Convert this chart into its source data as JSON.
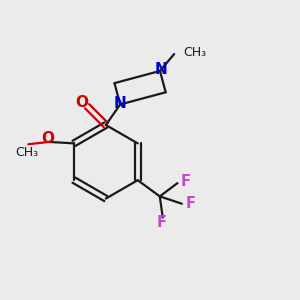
{
  "background_color": "#ebebeb",
  "bond_color": "#1a1a1a",
  "oxygen_color": "#cc0000",
  "nitrogen_color": "#0000cc",
  "fluorine_color": "#cc44cc",
  "line_width": 1.6,
  "figsize": [
    3.0,
    3.0
  ],
  "dpi": 100,
  "methoxy_label": "O",
  "methyl_label": "CH₃",
  "n_label": "N",
  "o_label": "O",
  "f_label": "F"
}
